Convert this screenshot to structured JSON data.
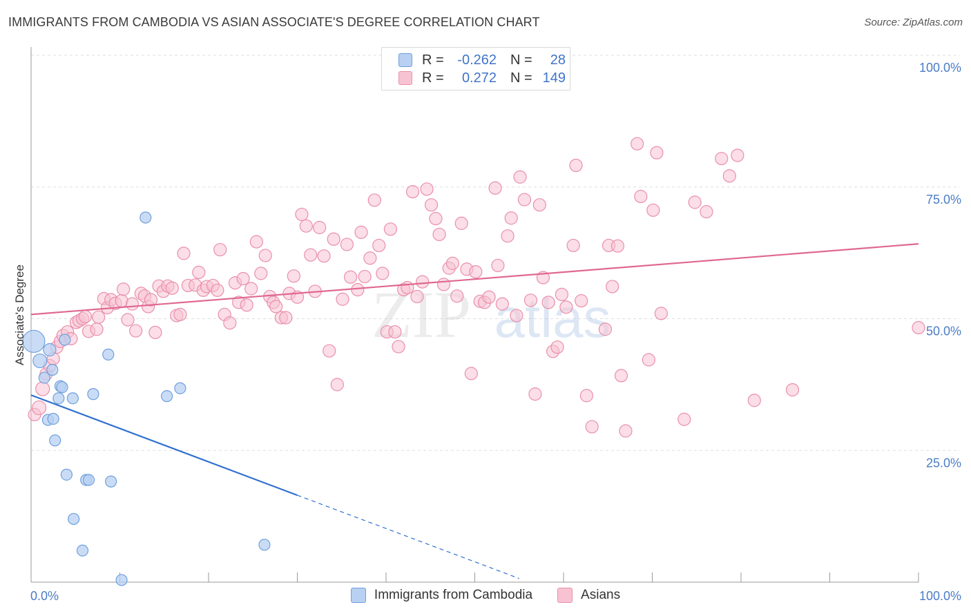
{
  "title": "IMMIGRANTS FROM CAMBODIA VS ASIAN ASSOCIATE'S DEGREE CORRELATION CHART",
  "source": "Source: ZipAtlas.com",
  "watermark": {
    "zip": "ZIP",
    "atlas": "atlas"
  },
  "colors": {
    "blue_fill": "#b8d0f2",
    "blue_stroke": "#6e9fdc",
    "blue_line": "#2f6fcf",
    "pink_fill": "#f7c3d3",
    "pink_stroke": "#e98fab",
    "pink_line": "#e06890",
    "axis_text": "#4a7cc7",
    "grid": "#dddddd"
  },
  "legend_top": {
    "rows": [
      {
        "series": "Immigrants from Cambodia",
        "r_label": "R =",
        "r_value": "-0.262",
        "n_label": "N =",
        "n_value": "28"
      },
      {
        "series": "Asians",
        "r_label": "R =",
        "r_value": "0.272",
        "n_label": "N =",
        "n_value": "149"
      }
    ]
  },
  "legend_bottom": [
    "Immigrants from Cambodia",
    "Asians"
  ],
  "chart_data": {
    "type": "scatter",
    "title": "IMMIGRANTS FROM CAMBODIA VS ASIAN ASSOCIATE'S DEGREE CORRELATION CHART",
    "xlabel": "",
    "ylabel": "Associate's Degree",
    "xlim": [
      0,
      100
    ],
    "ylim": [
      0,
      100
    ],
    "x_tick_labels": [
      "0.0%",
      "100.0%"
    ],
    "y_tick_labels": [
      "25.0%",
      "50.0%",
      "75.0%",
      "100.0%"
    ],
    "y_ticks": [
      25,
      50,
      75,
      100
    ],
    "grid": true,
    "series": [
      {
        "name": "Immigrants from Cambodia",
        "r": -0.262,
        "n": 28,
        "trend": {
          "x0": 0,
          "y0": 35.5,
          "x1": 30,
          "y1": 16.5,
          "dash_to_x": 55,
          "dash_to_y": 0.7
        },
        "points": [
          [
            0.3,
            45.7,
            16
          ],
          [
            1.0,
            42.0,
            10
          ],
          [
            1.5,
            38.8,
            8
          ],
          [
            1.9,
            30.8,
            8
          ],
          [
            2.1,
            44.1,
            9
          ],
          [
            2.4,
            40.3,
            8
          ],
          [
            2.5,
            31.0,
            8
          ],
          [
            2.7,
            26.9,
            8
          ],
          [
            3.1,
            34.9,
            8
          ],
          [
            3.3,
            37.2,
            8
          ],
          [
            3.5,
            37.0,
            8
          ],
          [
            3.8,
            46.0,
            8
          ],
          [
            4.0,
            20.4,
            8
          ],
          [
            4.7,
            34.9,
            8
          ],
          [
            4.8,
            12.0,
            8
          ],
          [
            5.8,
            6.0,
            8
          ],
          [
            6.2,
            19.4,
            8
          ],
          [
            6.5,
            19.4,
            8
          ],
          [
            7.0,
            35.7,
            8
          ],
          [
            8.7,
            43.2,
            8
          ],
          [
            9.0,
            19.1,
            8
          ],
          [
            10.2,
            0.4,
            8
          ],
          [
            12.9,
            69.2,
            8
          ],
          [
            15.3,
            35.3,
            8
          ],
          [
            16.8,
            36.8,
            8
          ],
          [
            26.3,
            7.1,
            8
          ]
        ]
      },
      {
        "name": "Asians",
        "r": 0.272,
        "n": 149,
        "trend": {
          "x0": 0,
          "y0": 50.8,
          "x1": 100,
          "y1": 64.2
        },
        "points": [
          [
            0.4,
            31.8,
            9
          ],
          [
            0.9,
            33.1,
            10
          ],
          [
            1.3,
            36.7,
            10
          ],
          [
            1.7,
            39.5,
            9
          ],
          [
            2.1,
            41.1,
            9
          ],
          [
            2.5,
            42.4,
            9
          ],
          [
            2.9,
            44.6,
            9
          ],
          [
            3.3,
            45.7,
            9
          ],
          [
            3.6,
            46.8,
            9
          ],
          [
            4.1,
            47.5,
            9
          ],
          [
            4.5,
            46.2,
            9
          ],
          [
            5.1,
            49.3,
            9
          ],
          [
            5.4,
            49.6,
            9
          ],
          [
            5.8,
            50.0,
            9
          ],
          [
            6.1,
            50.4,
            9
          ],
          [
            6.5,
            47.6,
            9
          ],
          [
            7.4,
            48.0,
            9
          ],
          [
            7.6,
            50.3,
            9
          ],
          [
            8.2,
            53.8,
            9
          ],
          [
            8.6,
            52.1,
            9
          ],
          [
            9.0,
            53.6,
            9
          ],
          [
            9.5,
            52.9,
            9
          ],
          [
            10.2,
            53.4,
            9
          ],
          [
            10.4,
            55.6,
            9
          ],
          [
            10.9,
            49.8,
            9
          ],
          [
            11.4,
            52.8,
            9
          ],
          [
            11.8,
            47.7,
            9
          ],
          [
            12.4,
            54.8,
            9
          ],
          [
            12.8,
            54.3,
            9
          ],
          [
            13.2,
            52.3,
            9
          ],
          [
            13.5,
            53.6,
            9
          ],
          [
            14.0,
            47.4,
            9
          ],
          [
            14.4,
            56.2,
            9
          ],
          [
            14.9,
            55.2,
            9
          ],
          [
            15.4,
            56.2,
            9
          ],
          [
            15.9,
            55.8,
            9
          ],
          [
            16.4,
            50.6,
            9
          ],
          [
            16.8,
            50.8,
            9
          ],
          [
            17.2,
            62.4,
            9
          ],
          [
            17.7,
            56.3,
            9
          ],
          [
            18.5,
            56.4,
            9
          ],
          [
            18.9,
            58.8,
            9
          ],
          [
            19.4,
            55.4,
            9
          ],
          [
            19.8,
            56.1,
            9
          ],
          [
            20.5,
            56.3,
            9
          ],
          [
            21.0,
            55.4,
            9
          ],
          [
            21.3,
            63.1,
            9
          ],
          [
            21.8,
            50.8,
            9
          ],
          [
            22.4,
            49.2,
            9
          ],
          [
            23.0,
            56.8,
            9
          ],
          [
            23.4,
            53.1,
            9
          ],
          [
            23.9,
            57.6,
            9
          ],
          [
            24.3,
            52.6,
            9
          ],
          [
            24.8,
            55.7,
            9
          ],
          [
            25.4,
            64.6,
            9
          ],
          [
            25.9,
            58.6,
            9
          ],
          [
            26.4,
            62.0,
            9
          ],
          [
            26.9,
            54.2,
            9
          ],
          [
            27.3,
            53.1,
            9
          ],
          [
            27.6,
            52.3,
            9
          ],
          [
            28.2,
            50.2,
            9
          ],
          [
            28.7,
            50.2,
            9
          ],
          [
            29.1,
            54.8,
            9
          ],
          [
            29.6,
            58.1,
            9
          ],
          [
            30.0,
            54.1,
            9
          ],
          [
            30.5,
            69.8,
            9
          ],
          [
            31.0,
            67.6,
            9
          ],
          [
            31.5,
            62.1,
            9
          ],
          [
            32.0,
            55.2,
            9
          ],
          [
            32.5,
            67.3,
            9
          ],
          [
            33.0,
            61.9,
            9
          ],
          [
            33.6,
            43.9,
            9
          ],
          [
            34.1,
            65.1,
            9
          ],
          [
            34.5,
            37.5,
            9
          ],
          [
            35.1,
            53.7,
            9
          ],
          [
            35.6,
            64.1,
            9
          ],
          [
            36.0,
            57.9,
            9
          ],
          [
            36.8,
            55.5,
            9
          ],
          [
            37.2,
            66.4,
            9
          ],
          [
            37.6,
            58.0,
            9
          ],
          [
            38.2,
            61.5,
            9
          ],
          [
            38.7,
            72.5,
            9
          ],
          [
            39.2,
            63.9,
            9
          ],
          [
            39.6,
            58.6,
            9
          ],
          [
            40.1,
            47.5,
            9
          ],
          [
            40.5,
            67.0,
            9
          ],
          [
            41.0,
            47.5,
            9
          ],
          [
            41.4,
            44.7,
            9
          ],
          [
            42.0,
            55.5,
            9
          ],
          [
            42.4,
            55.9,
            9
          ],
          [
            43.0,
            74.1,
            9
          ],
          [
            43.5,
            54.2,
            9
          ],
          [
            44.1,
            57.0,
            9
          ],
          [
            44.6,
            74.6,
            9
          ],
          [
            45.1,
            71.6,
            9
          ],
          [
            45.6,
            69.0,
            9
          ],
          [
            46.0,
            66.0,
            9
          ],
          [
            46.5,
            56.5,
            9
          ],
          [
            47.1,
            59.6,
            9
          ],
          [
            47.5,
            60.5,
            9
          ],
          [
            48.0,
            54.3,
            9
          ],
          [
            48.5,
            68.1,
            9
          ],
          [
            49.1,
            59.4,
            9
          ],
          [
            49.6,
            39.6,
            9
          ],
          [
            50.1,
            58.9,
            9
          ],
          [
            50.6,
            53.3,
            9
          ],
          [
            51.1,
            53.1,
            9
          ],
          [
            51.6,
            54.1,
            9
          ],
          [
            52.3,
            74.8,
            9
          ],
          [
            52.6,
            60.1,
            9
          ],
          [
            53.1,
            52.8,
            9
          ],
          [
            53.7,
            65.7,
            9
          ],
          [
            54.1,
            69.1,
            9
          ],
          [
            54.7,
            50.6,
            9
          ],
          [
            55.1,
            76.9,
            9
          ],
          [
            55.6,
            72.6,
            9
          ],
          [
            56.3,
            53.5,
            9
          ],
          [
            56.8,
            35.7,
            9
          ],
          [
            57.3,
            71.6,
            9
          ],
          [
            57.7,
            57.8,
            9
          ],
          [
            58.3,
            53.1,
            9
          ],
          [
            58.8,
            43.8,
            9
          ],
          [
            59.3,
            44.6,
            9
          ],
          [
            59.8,
            54.6,
            9
          ],
          [
            60.3,
            52.2,
            9
          ],
          [
            61.1,
            63.9,
            9
          ],
          [
            61.4,
            79.1,
            9
          ],
          [
            62.0,
            53.4,
            9
          ],
          [
            62.6,
            35.4,
            9
          ],
          [
            63.2,
            29.5,
            9
          ],
          [
            64.7,
            48.0,
            9
          ],
          [
            65.1,
            63.9,
            9
          ],
          [
            65.5,
            56.1,
            9
          ],
          [
            66.1,
            63.8,
            9
          ],
          [
            66.5,
            39.2,
            9
          ],
          [
            67.0,
            28.7,
            9
          ],
          [
            68.3,
            83.2,
            9
          ],
          [
            68.7,
            73.2,
            9
          ],
          [
            69.6,
            42.2,
            9
          ],
          [
            70.1,
            70.6,
            9
          ],
          [
            70.5,
            81.5,
            9
          ],
          [
            71.0,
            51.0,
            9
          ],
          [
            73.6,
            30.9,
            9
          ],
          [
            74.8,
            72.1,
            9
          ],
          [
            76.1,
            70.3,
            9
          ],
          [
            77.8,
            80.4,
            9
          ],
          [
            78.7,
            77.1,
            9
          ],
          [
            79.6,
            81.0,
            9
          ],
          [
            81.5,
            34.5,
            9
          ],
          [
            85.8,
            36.5,
            9
          ],
          [
            100.0,
            48.3,
            9
          ]
        ]
      }
    ]
  }
}
